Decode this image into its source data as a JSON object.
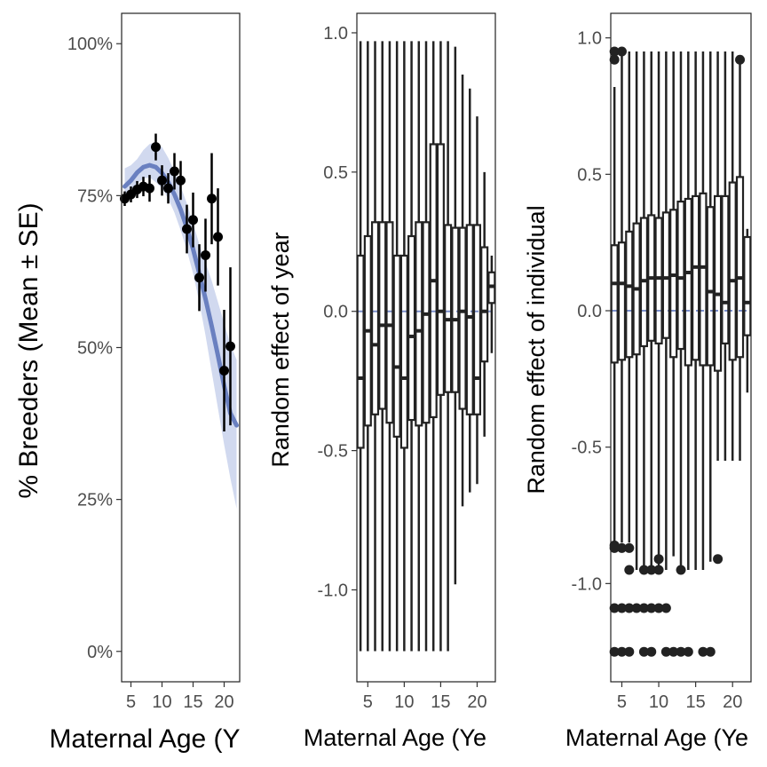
{
  "colors": {
    "fit_line": "#6a80c0",
    "ribbon": "#c9d2ec",
    "points": "#000000",
    "box": "#222222",
    "zero_line": "#7b8fcc",
    "panel_border": "#222222",
    "tick_text": "#4d4d4d"
  },
  "chart_data": [
    {
      "type": "scatter",
      "xlabel": "Maternal Age (Y",
      "ylabel": "% Breeders (Mean ± SE)",
      "xlim": [
        3.5,
        22.5
      ],
      "ylim": [
        -0.05,
        1.05
      ],
      "x_ticks": [
        5,
        10,
        15,
        20
      ],
      "x_tick_labels": [
        "5",
        "10",
        "15",
        "20"
      ],
      "y_ticks": [
        0,
        0.25,
        0.5,
        0.75,
        1.0
      ],
      "y_tick_labels": [
        "0%",
        "25%",
        "50%",
        "75%",
        "100%"
      ],
      "grid": false,
      "points": [
        {
          "x": 4,
          "y": 0.745,
          "se": 0.012
        },
        {
          "x": 5,
          "y": 0.752,
          "se": 0.013
        },
        {
          "x": 6,
          "y": 0.76,
          "se": 0.014
        },
        {
          "x": 7,
          "y": 0.765,
          "se": 0.016
        },
        {
          "x": 8,
          "y": 0.762,
          "se": 0.022
        },
        {
          "x": 9,
          "y": 0.83,
          "se": 0.022
        },
        {
          "x": 10,
          "y": 0.775,
          "se": 0.025
        },
        {
          "x": 11,
          "y": 0.762,
          "se": 0.025
        },
        {
          "x": 12,
          "y": 0.79,
          "se": 0.03
        },
        {
          "x": 13,
          "y": 0.775,
          "se": 0.032
        },
        {
          "x": 14,
          "y": 0.695,
          "se": 0.04
        },
        {
          "x": 15,
          "y": 0.71,
          "se": 0.045
        },
        {
          "x": 16,
          "y": 0.615,
          "se": 0.055
        },
        {
          "x": 17,
          "y": 0.652,
          "se": 0.06
        },
        {
          "x": 18,
          "y": 0.745,
          "se": 0.075
        },
        {
          "x": 19,
          "y": 0.682,
          "se": 0.08
        },
        {
          "x": 20,
          "y": 0.462,
          "se": 0.1
        },
        {
          "x": 21,
          "y": 0.502,
          "se": 0.13
        }
      ],
      "fit": {
        "x": [
          4,
          5,
          6,
          7,
          8,
          9,
          10,
          11,
          12,
          13,
          14,
          15,
          16,
          17,
          18,
          19,
          20,
          21,
          22
        ],
        "y": [
          0.765,
          0.775,
          0.788,
          0.797,
          0.8,
          0.797,
          0.787,
          0.772,
          0.752,
          0.727,
          0.697,
          0.662,
          0.622,
          0.58,
          0.535,
          0.487,
          0.437,
          0.392,
          0.372
        ],
        "lower": [
          0.735,
          0.752,
          0.77,
          0.778,
          0.78,
          0.772,
          0.762,
          0.745,
          0.722,
          0.693,
          0.66,
          0.622,
          0.575,
          0.52,
          0.46,
          0.4,
          0.34,
          0.285,
          0.235
        ],
        "upper": [
          0.795,
          0.8,
          0.81,
          0.825,
          0.835,
          0.838,
          0.83,
          0.812,
          0.79,
          0.765,
          0.737,
          0.705,
          0.67,
          0.64,
          0.61,
          0.575,
          0.54,
          0.505,
          0.48
        ]
      }
    },
    {
      "type": "box",
      "xlabel": "Maternal Age (Ye",
      "ylabel": "Random effect of year",
      "xlim": [
        3.5,
        22.5
      ],
      "ylim": [
        -1.33,
        1.07
      ],
      "x_ticks": [
        5,
        10,
        15,
        20
      ],
      "x_tick_labels": [
        "5",
        "10",
        "15",
        "20"
      ],
      "y_ticks": [
        -1.0,
        -0.5,
        0.0,
        0.5,
        1.0
      ],
      "y_tick_labels": [
        "-1.0",
        "-0.5",
        "0.0",
        "0.5",
        "1.0"
      ],
      "grid": false,
      "boxes": [
        {
          "x": 4,
          "min": -1.22,
          "q1": -0.49,
          "median": -0.24,
          "q3": 0.2,
          "max": 0.97
        },
        {
          "x": 5,
          "min": -1.22,
          "q1": -0.41,
          "median": -0.07,
          "q3": 0.27,
          "max": 0.97
        },
        {
          "x": 6,
          "min": -1.22,
          "q1": -0.37,
          "median": -0.12,
          "q3": 0.32,
          "max": 0.97
        },
        {
          "x": 7,
          "min": -1.22,
          "q1": -0.35,
          "median": -0.05,
          "q3": 0.32,
          "max": 0.97
        },
        {
          "x": 8,
          "min": -1.22,
          "q1": -0.4,
          "median": -0.05,
          "q3": 0.32,
          "max": 0.97
        },
        {
          "x": 9,
          "min": -1.22,
          "q1": -0.45,
          "median": -0.2,
          "q3": 0.2,
          "max": 0.97
        },
        {
          "x": 10,
          "min": -1.22,
          "q1": -0.49,
          "median": -0.24,
          "q3": 0.2,
          "max": 0.97
        },
        {
          "x": 11,
          "min": -1.22,
          "q1": -0.39,
          "median": -0.09,
          "q3": 0.27,
          "max": 0.97
        },
        {
          "x": 12,
          "min": -1.22,
          "q1": -0.41,
          "median": -0.07,
          "q3": 0.32,
          "max": 0.97
        },
        {
          "x": 13,
          "min": -1.22,
          "q1": -0.4,
          "median": -0.01,
          "q3": 0.32,
          "max": 0.97
        },
        {
          "x": 14,
          "min": -1.22,
          "q1": -0.38,
          "median": 0.11,
          "q3": 0.6,
          "max": 0.97
        },
        {
          "x": 15,
          "min": -1.22,
          "q1": -0.3,
          "median": 0.0,
          "q3": 0.6,
          "max": 0.97
        },
        {
          "x": 16,
          "min": -1.22,
          "q1": -0.29,
          "median": -0.03,
          "q3": 0.31,
          "max": 0.97
        },
        {
          "x": 17,
          "min": -0.98,
          "q1": -0.29,
          "median": -0.03,
          "q3": 0.3,
          "max": 0.95
        },
        {
          "x": 18,
          "min": -0.7,
          "q1": -0.35,
          "median": 0.0,
          "q3": 0.3,
          "max": 0.85
        },
        {
          "x": 19,
          "min": -0.65,
          "q1": -0.37,
          "median": -0.02,
          "q3": 0.31,
          "max": 0.8
        },
        {
          "x": 20,
          "min": -0.62,
          "q1": -0.37,
          "median": -0.24,
          "q3": 0.31,
          "max": 0.7
        },
        {
          "x": 21,
          "min": -0.45,
          "q1": -0.18,
          "median": 0.0,
          "q3": 0.23,
          "max": 0.5
        },
        {
          "x": 22,
          "min": -0.15,
          "q1": 0.03,
          "median": 0.09,
          "q3": 0.14,
          "max": 0.2
        }
      ],
      "zero_line": 0.0
    },
    {
      "type": "box",
      "xlabel": "Maternal Age (Ye",
      "ylabel": "Random effect of individual",
      "xlim": [
        3.5,
        22.5
      ],
      "ylim": [
        -1.36,
        1.09
      ],
      "x_ticks": [
        5,
        10,
        15,
        20
      ],
      "x_tick_labels": [
        "5",
        "10",
        "15",
        "20"
      ],
      "y_ticks": [
        -1.0,
        -0.5,
        0.0,
        0.5,
        1.0
      ],
      "y_tick_labels": [
        "-1.0",
        "-0.5",
        "0.0",
        "0.5",
        "1.0"
      ],
      "grid": false,
      "boxes": [
        {
          "x": 4,
          "min": -0.85,
          "q1": -0.19,
          "median": 0.1,
          "q3": 0.24,
          "max": 0.82
        },
        {
          "x": 5,
          "min": -0.85,
          "q1": -0.18,
          "median": 0.1,
          "q3": 0.25,
          "max": 0.95
        },
        {
          "x": 6,
          "min": -0.85,
          "q1": -0.17,
          "median": 0.09,
          "q3": 0.29,
          "max": 0.95
        },
        {
          "x": 7,
          "min": -0.95,
          "q1": -0.16,
          "median": 0.08,
          "q3": 0.32,
          "max": 0.95
        },
        {
          "x": 8,
          "min": -0.95,
          "q1": -0.13,
          "median": 0.11,
          "q3": 0.34,
          "max": 0.95
        },
        {
          "x": 9,
          "min": -0.95,
          "q1": -0.11,
          "median": 0.12,
          "q3": 0.35,
          "max": 0.95
        },
        {
          "x": 10,
          "min": -0.95,
          "q1": -0.12,
          "median": 0.12,
          "q3": 0.34,
          "max": 0.95
        },
        {
          "x": 11,
          "min": -0.95,
          "q1": -0.1,
          "median": 0.12,
          "q3": 0.36,
          "max": 0.95
        },
        {
          "x": 12,
          "min": -0.9,
          "q1": -0.17,
          "median": 0.13,
          "q3": 0.37,
          "max": 0.95
        },
        {
          "x": 13,
          "min": -0.95,
          "q1": -0.14,
          "median": 0.12,
          "q3": 0.4,
          "max": 0.95
        },
        {
          "x": 14,
          "min": -0.95,
          "q1": -0.2,
          "median": 0.14,
          "q3": 0.41,
          "max": 0.95
        },
        {
          "x": 15,
          "min": -0.95,
          "q1": -0.18,
          "median": 0.16,
          "q3": 0.42,
          "max": 0.95
        },
        {
          "x": 16,
          "min": -0.95,
          "q1": -0.2,
          "median": 0.16,
          "q3": 0.43,
          "max": 0.95
        },
        {
          "x": 17,
          "min": -0.92,
          "q1": -0.2,
          "median": 0.07,
          "q3": 0.38,
          "max": 0.95
        },
        {
          "x": 18,
          "min": -0.55,
          "q1": -0.22,
          "median": 0.06,
          "q3": 0.42,
          "max": 0.95
        },
        {
          "x": 19,
          "min": -0.55,
          "q1": -0.12,
          "median": 0.03,
          "q3": 0.42,
          "max": 0.95
        },
        {
          "x": 20,
          "min": -0.55,
          "q1": -0.18,
          "median": 0.11,
          "q3": 0.47,
          "max": 0.95
        },
        {
          "x": 21,
          "min": -0.55,
          "q1": -0.17,
          "median": 0.12,
          "q3": 0.49,
          "max": 0.92
        },
        {
          "x": 22,
          "min": -0.3,
          "q1": -0.09,
          "median": 0.03,
          "q3": 0.27,
          "max": 0.3
        }
      ],
      "outliers": [
        {
          "x": 4,
          "y": 0.95
        },
        {
          "x": 4,
          "y": 0.92
        },
        {
          "x": 5,
          "y": 0.95
        },
        {
          "x": 21,
          "y": 0.92
        },
        {
          "x": 4,
          "y": -0.86
        },
        {
          "x": 4,
          "y": -0.87
        },
        {
          "x": 5,
          "y": -0.87
        },
        {
          "x": 6,
          "y": -0.87
        },
        {
          "x": 6,
          "y": -0.95
        },
        {
          "x": 8,
          "y": -0.95
        },
        {
          "x": 9,
          "y": -0.95
        },
        {
          "x": 10,
          "y": -0.95
        },
        {
          "x": 10,
          "y": -0.91
        },
        {
          "x": 13,
          "y": -0.95
        },
        {
          "x": 18,
          "y": -0.91
        },
        {
          "x": 4,
          "y": -1.09
        },
        {
          "x": 5,
          "y": -1.09
        },
        {
          "x": 6,
          "y": -1.09
        },
        {
          "x": 7,
          "y": -1.09
        },
        {
          "x": 8,
          "y": -1.09
        },
        {
          "x": 9,
          "y": -1.09
        },
        {
          "x": 10,
          "y": -1.09
        },
        {
          "x": 11,
          "y": -1.09
        },
        {
          "x": 4,
          "y": -1.25
        },
        {
          "x": 5,
          "y": -1.25
        },
        {
          "x": 6,
          "y": -1.25
        },
        {
          "x": 8,
          "y": -1.25
        },
        {
          "x": 9,
          "y": -1.25
        },
        {
          "x": 11,
          "y": -1.25
        },
        {
          "x": 12,
          "y": -1.25
        },
        {
          "x": 13,
          "y": -1.25
        },
        {
          "x": 14,
          "y": -1.25
        },
        {
          "x": 16,
          "y": -1.25
        },
        {
          "x": 17,
          "y": -1.25
        }
      ],
      "zero_line": 0.0
    }
  ]
}
